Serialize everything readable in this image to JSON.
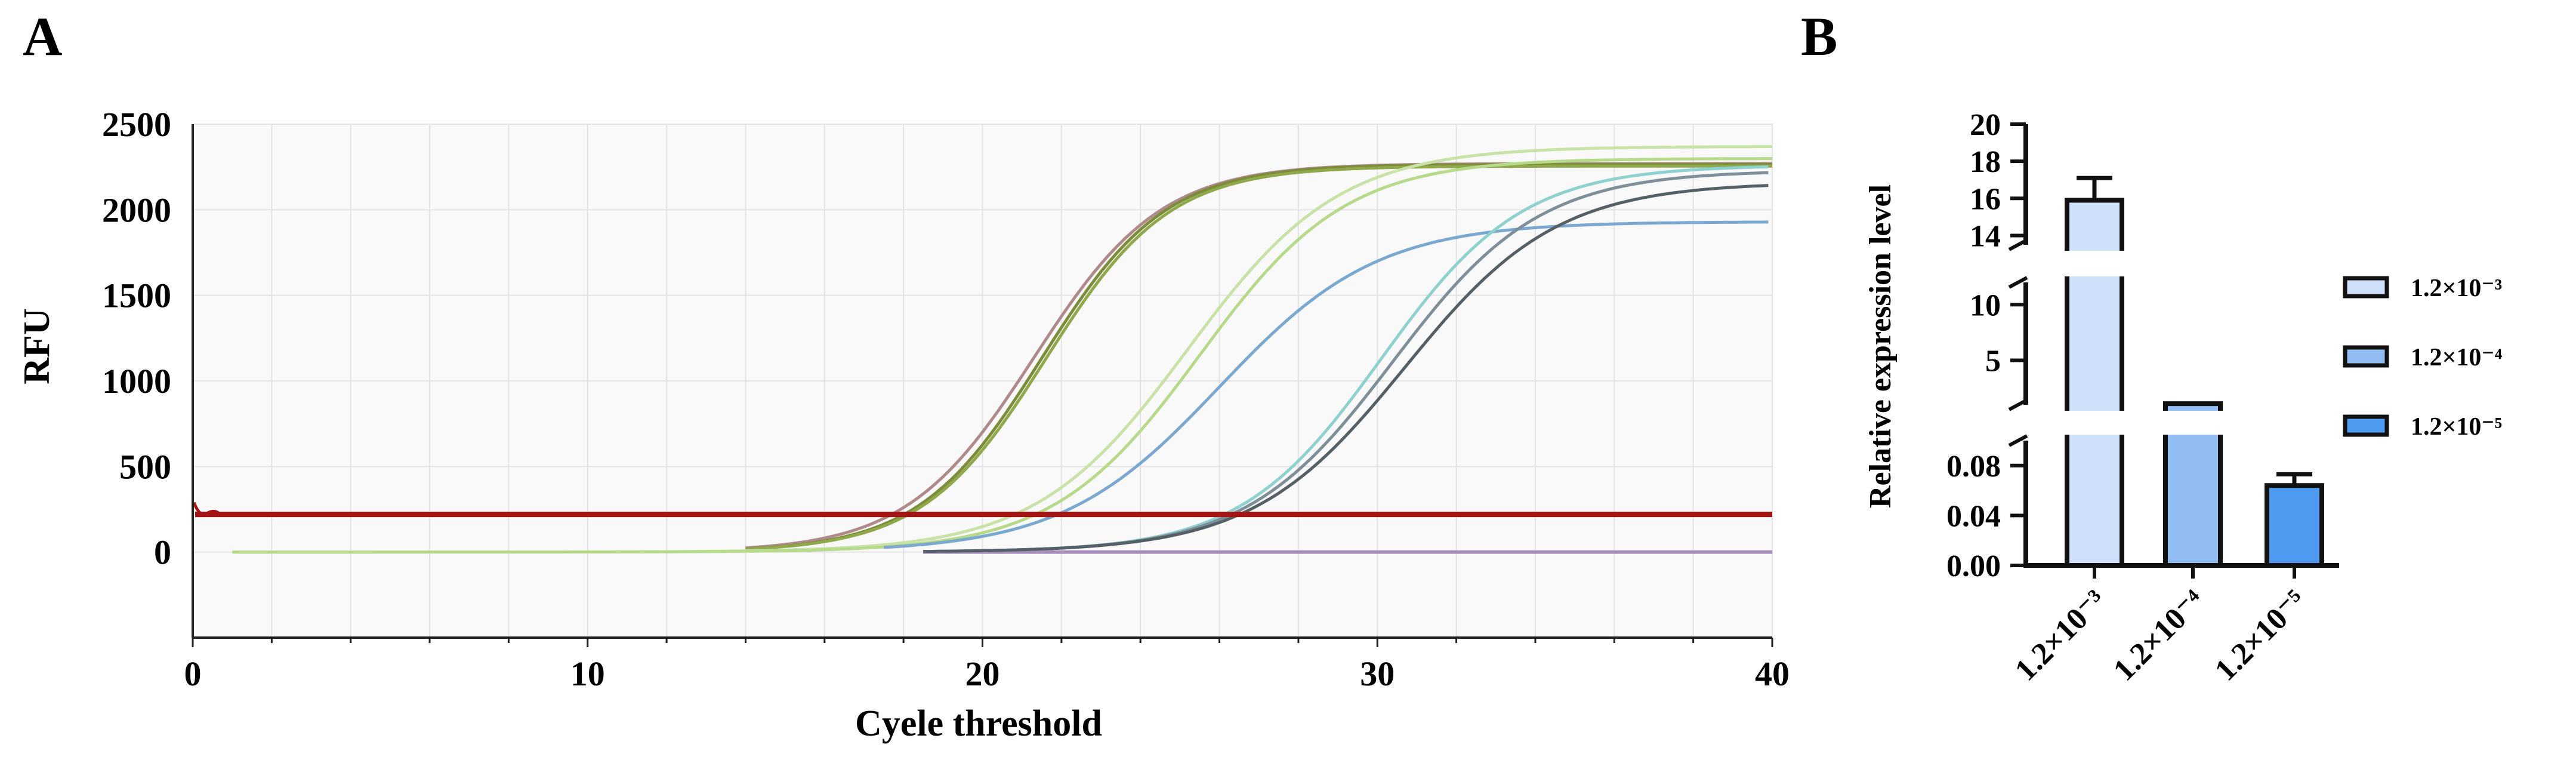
{
  "panel_a": {
    "label": "A",
    "xlabel": "Cyele threshold",
    "ylabel": "RFU"
  },
  "panel_b": {
    "label": "B",
    "ylabel": "Relative expression level"
  },
  "colors": {
    "threshold": "#a31515",
    "baseline": "#a98fbd",
    "plot_bg": "#f9f9f9",
    "grid": "#e3e3e3",
    "bar_1": "#cfe0fa",
    "bar_2": "#92bdf3",
    "bar_3": "#4d9af0"
  },
  "chart_data": [
    {
      "type": "line",
      "title": "",
      "xlabel": "Cyele threshold",
      "ylabel": "RFU",
      "xlim": [
        0,
        40
      ],
      "ylim": [
        -500,
        2500
      ],
      "xticks": [
        0,
        10,
        20,
        30,
        40
      ],
      "yticks": [
        0,
        500,
        1000,
        1500,
        2000,
        2500
      ],
      "grid": true,
      "threshold": 220,
      "series": [
        {
          "color": "#b08a8a",
          "ct": 21.3,
          "plateau": 2270,
          "k": 0.62,
          "start": 14.0
        },
        {
          "color": "#7c8c3a",
          "ct": 21.5,
          "plateau": 2265,
          "k": 0.64,
          "start": 14.0
        },
        {
          "color": "#8fa84a",
          "ct": 21.6,
          "plateau": 2255,
          "k": 0.64,
          "start": 14.0
        },
        {
          "color": "#c8e2a8",
          "ct": 25.2,
          "plateau": 2370,
          "k": 0.52,
          "start": 1.0
        },
        {
          "color": "#b7d98a",
          "ct": 25.5,
          "plateau": 2300,
          "k": 0.54,
          "start": 1.0
        },
        {
          "color": "#7aa8d0",
          "ct": 26.0,
          "plateau": 1930,
          "k": 0.5,
          "start": 17.5
        },
        {
          "color": "#8fd1cf",
          "ct": 30.1,
          "plateau": 2260,
          "k": 0.56,
          "start": 18.5
        },
        {
          "color": "#7e8f99",
          "ct": 30.4,
          "plateau": 2230,
          "k": 0.54,
          "start": 18.5
        },
        {
          "color": "#555f66",
          "ct": 30.7,
          "plateau": 2160,
          "k": 0.52,
          "start": 18.5
        }
      ],
      "baseline_series": {
        "color": "#a98fbd",
        "x": [
          18.5,
          40
        ],
        "y": [
          0,
          0
        ]
      },
      "threshold_series": {
        "color": "#a31515",
        "y": 220
      }
    },
    {
      "type": "bar",
      "title": "",
      "xlabel": "",
      "ylabel": "Relative expression level",
      "broken_axis": true,
      "segments": [
        {
          "range": [
            0,
            0.1
          ],
          "ticks": [
            "0.00",
            "0.04",
            "0.08"
          ]
        },
        {
          "range": [
            1,
            12
          ],
          "ticks": [
            "5",
            "10"
          ]
        },
        {
          "range": [
            13.5,
            20
          ],
          "ticks": [
            "14",
            "16",
            "18",
            "20"
          ]
        }
      ],
      "categories": [
        "1.2×10⁻³",
        "1.2×10⁻⁴",
        "1.2×10⁻⁵"
      ],
      "values": [
        15.9,
        1.1,
        0.064
      ],
      "errors": [
        1.2,
        0,
        0.009
      ],
      "legend": {
        "placement": "right",
        "entries": [
          "1.2×10⁻³",
          "1.2×10⁻⁴",
          "1.2×10⁻⁵"
        ]
      }
    }
  ]
}
